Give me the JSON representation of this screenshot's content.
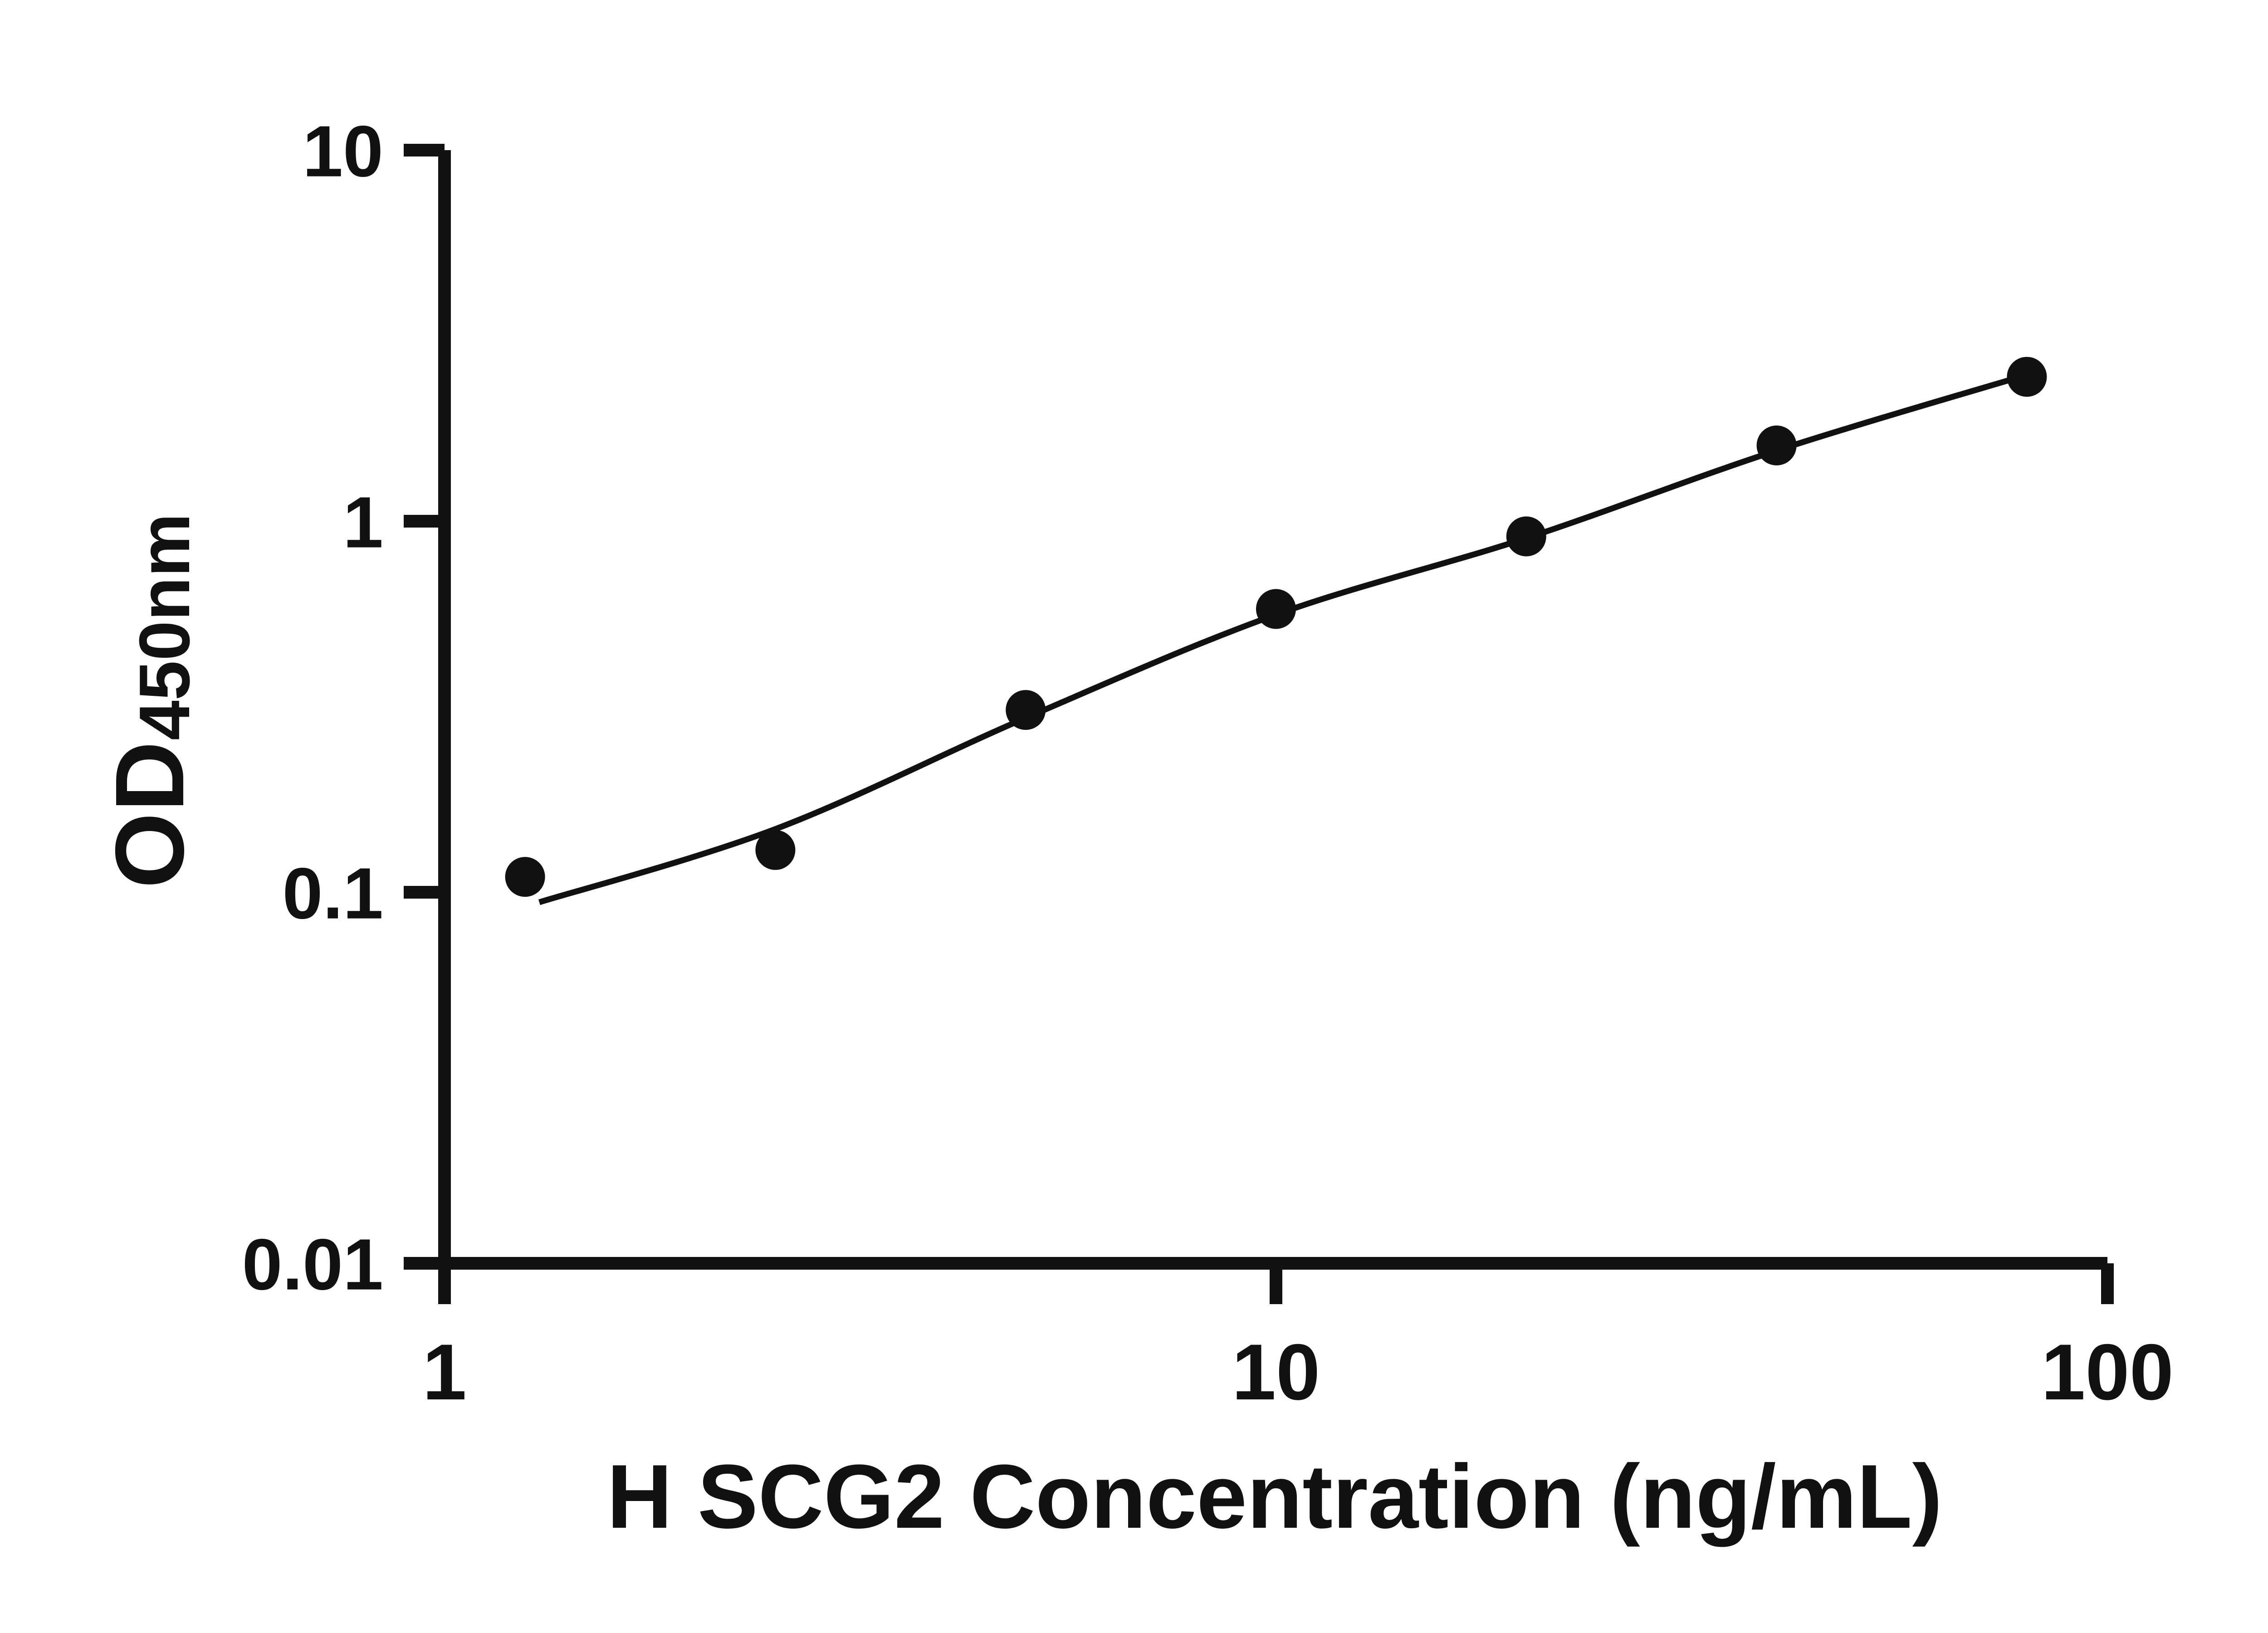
{
  "chart_data": {
    "type": "scatter",
    "title": "",
    "xlabel": "H SCG2 Concentration (ng/mL)",
    "ylabel": "OD450nm",
    "ylabel_main": "OD",
    "ylabel_sub": "450nm",
    "xscale": "log",
    "yscale": "log",
    "xlim": [
      1,
      100
    ],
    "ylim": [
      0.01,
      10
    ],
    "grid": false,
    "legend": null,
    "x_ticks": {
      "values": [
        1,
        10,
        100
      ],
      "labels": [
        "1",
        "10",
        "100"
      ]
    },
    "y_ticks": {
      "values": [
        10,
        1,
        0.1,
        0.01
      ],
      "labels": [
        "10",
        "1",
        "0.1",
        "0.01"
      ]
    },
    "x": [
      1.25,
      2.5,
      5,
      10,
      20,
      40,
      80
    ],
    "y": [
      0.11,
      0.13,
      0.31,
      0.58,
      0.91,
      1.6,
      2.45
    ],
    "fit_curve": {
      "x": [
        1.3,
        2.5,
        5,
        10,
        20,
        40,
        81
      ],
      "y": [
        0.094,
        0.148,
        0.295,
        0.56,
        0.9,
        1.55,
        2.5
      ]
    },
    "marker_color": "#111111",
    "line_color": "#111111",
    "axis_color": "#111111"
  }
}
